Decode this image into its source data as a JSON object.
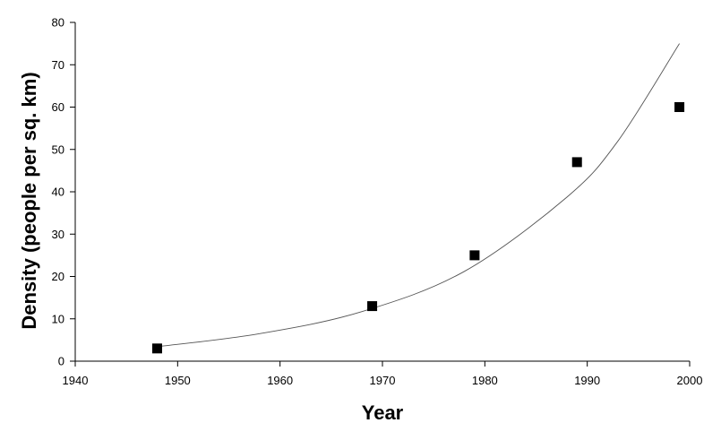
{
  "chart_data": {
    "type": "scatter",
    "title": "",
    "xlabel": "Year",
    "ylabel": "Density (people per sq. km)",
    "xlim": [
      1940,
      2000
    ],
    "ylim": [
      0,
      80
    ],
    "x_ticks": [
      "1940",
      "1950",
      "1960",
      "1970",
      "1980",
      "1990",
      "2000"
    ],
    "y_ticks": [
      "0",
      "10",
      "20",
      "30",
      "40",
      "50",
      "60",
      "70",
      "80"
    ],
    "series": [
      {
        "marker": "square",
        "color": "#000000",
        "x": [
          1948,
          1969,
          1979,
          1989,
          1999
        ],
        "y": [
          3,
          13,
          25,
          47,
          60
        ]
      }
    ],
    "trendline": {
      "type": "exponential",
      "color": "#555555",
      "x": [
        1948,
        1958,
        1968,
        1978,
        1988,
        1993,
        1999
      ],
      "y": [
        3.4,
        6.5,
        11.7,
        21.2,
        38.7,
        52.0,
        75.0
      ]
    },
    "grid": false,
    "legend": "none"
  }
}
